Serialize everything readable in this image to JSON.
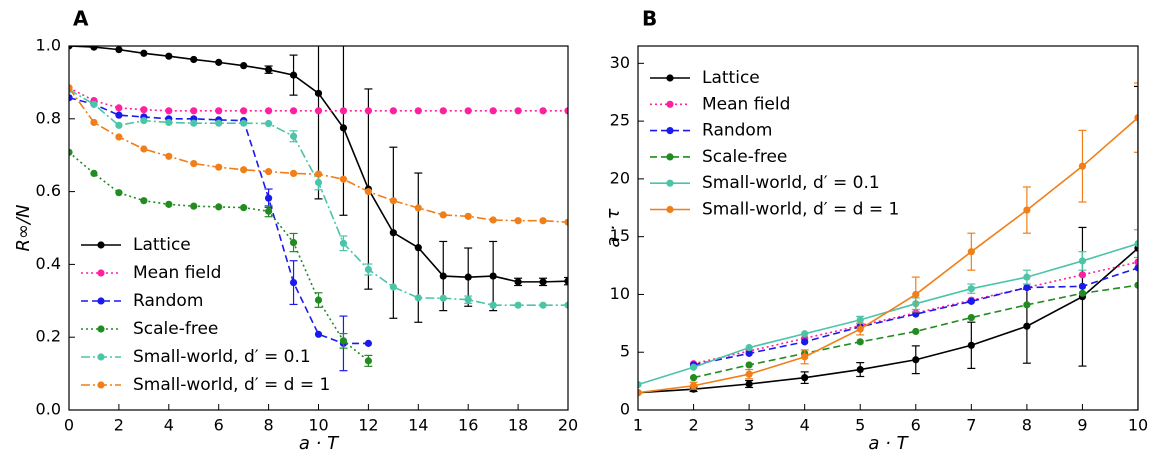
{
  "chart_data": [
    {
      "type": "line",
      "panel_label": "A",
      "x_label": "a · T",
      "y_label": "R∞/N",
      "x": [
        0,
        1,
        2,
        3,
        4,
        5,
        6,
        7,
        8,
        9,
        10,
        11,
        12,
        13,
        14,
        15,
        16,
        17,
        18,
        19,
        20
      ],
      "xlim": [
        0,
        20
      ],
      "xticks": [
        0,
        2,
        4,
        6,
        8,
        10,
        12,
        14,
        16,
        18,
        20
      ],
      "ylim": [
        0,
        1
      ],
      "yticks": [
        {
          "value": 0,
          "label": "0.0"
        },
        {
          "value": 0.2,
          "label": "0.2"
        },
        {
          "value": 0.4,
          "label": "0.4"
        },
        {
          "value": 0.6,
          "label": "0.6"
        },
        {
          "value": 0.8,
          "label": "0.8"
        },
        {
          "value": 1,
          "label": "1.0"
        }
      ],
      "legend": "lower left",
      "series": [
        {
          "name": "Lattice",
          "color": "#000000",
          "linestyle": "solid",
          "values": [
            1.0,
            0.997,
            0.99,
            0.98,
            0.972,
            0.963,
            0.955,
            0.946,
            0.935,
            0.92,
            0.87,
            0.775,
            0.607,
            0.487,
            0.446,
            0.368,
            0.365,
            0.368,
            0.352,
            0.352,
            0.354
          ],
          "errors": [
            null,
            null,
            null,
            null,
            null,
            null,
            null,
            null,
            0.01,
            0.055,
            0.29,
            0.24,
            0.275,
            0.235,
            0.205,
            0.095,
            0.08,
            0.095,
            0.01,
            0.01,
            0.01
          ]
        },
        {
          "name": "Mean field",
          "color": "#ff1fa0",
          "linestyle": "dotted",
          "values": [
            0.885,
            0.85,
            0.83,
            0.825,
            0.822,
            0.822,
            0.822,
            0.822,
            0.822,
            0.822,
            0.822,
            0.822,
            0.822,
            0.822,
            0.822,
            0.822,
            0.822,
            0.822,
            0.822,
            0.822,
            0.822
          ]
        },
        {
          "name": "Random",
          "color": "#1a1aee",
          "linestyle": "dashed",
          "values": [
            0.858,
            0.84,
            0.81,
            0.805,
            0.8,
            0.8,
            0.797,
            0.795,
            0.582,
            0.35,
            0.208,
            0.183,
            0.183,
            null,
            null,
            null,
            null,
            null,
            null,
            null,
            null
          ],
          "errors": [
            null,
            null,
            null,
            null,
            null,
            null,
            null,
            null,
            0.025,
            0.06,
            null,
            0.075,
            null,
            null,
            null,
            null,
            null,
            null,
            null,
            null,
            null
          ]
        },
        {
          "name": "Scale-free",
          "color": "#228b22",
          "linestyle": "dotted",
          "values": [
            0.708,
            0.65,
            0.597,
            0.575,
            0.565,
            0.56,
            0.558,
            0.556,
            0.546,
            0.46,
            0.302,
            0.19,
            0.135,
            null,
            null,
            null,
            null,
            null,
            null,
            null,
            null
          ],
          "errors": [
            null,
            null,
            null,
            null,
            null,
            null,
            null,
            null,
            0.015,
            0.025,
            0.02,
            0.02,
            0.015,
            null,
            null,
            null,
            null,
            null,
            null,
            null,
            null
          ]
        },
        {
          "name": "Small-world, d′ = 0.1",
          "color": "#4cc4a8",
          "linestyle": "dashdot",
          "values": [
            0.88,
            0.84,
            0.782,
            0.795,
            0.79,
            0.788,
            0.788,
            0.788,
            0.787,
            0.752,
            0.625,
            0.458,
            0.386,
            0.338,
            0.308,
            0.307,
            0.303,
            0.288,
            0.288,
            0.288,
            0.288
          ],
          "errors": [
            null,
            null,
            null,
            null,
            null,
            null,
            null,
            null,
            null,
            0.015,
            0.02,
            0.02,
            0.015,
            null,
            null,
            null,
            0.01,
            null,
            null,
            null,
            null
          ]
        },
        {
          "name": "Small-world, d′ = d = 1",
          "color": "#f07f1a",
          "linestyle": "dashdot",
          "values": [
            0.885,
            0.79,
            0.75,
            0.717,
            0.697,
            0.677,
            0.667,
            0.66,
            0.655,
            0.65,
            0.648,
            0.634,
            0.6,
            0.575,
            0.555,
            0.536,
            0.532,
            0.522,
            0.52,
            0.52,
            0.516
          ]
        }
      ]
    },
    {
      "type": "line",
      "panel_label": "B",
      "x_label": "a · T",
      "y_label": "a · τ",
      "x": [
        1,
        2,
        3,
        4,
        5,
        6,
        7,
        8,
        9,
        10
      ],
      "xlim": [
        1,
        10
      ],
      "xticks": [
        1,
        2,
        3,
        4,
        5,
        6,
        7,
        8,
        9,
        10
      ],
      "ylim": [
        0,
        31.5
      ],
      "yticks": [
        0,
        5,
        10,
        15,
        20,
        25,
        30
      ],
      "legend": "upper left",
      "series": [
        {
          "name": "Lattice",
          "color": "#000000",
          "linestyle": "solid",
          "values": [
            1.5,
            1.8,
            2.25,
            2.8,
            3.5,
            4.35,
            5.6,
            7.25,
            9.8,
            14.0
          ],
          "errors": [
            null,
            0.2,
            0.3,
            0.5,
            0.6,
            1.2,
            2.0,
            3.2,
            6.0,
            14.0
          ]
        },
        {
          "name": "Mean field",
          "color": "#ff1fa0",
          "linestyle": "dotted",
          "values": [
            null,
            4.0,
            5.1,
            6.2,
            7.3,
            8.4,
            9.5,
            10.6,
            11.7,
            12.8
          ]
        },
        {
          "name": "Random",
          "color": "#1a1aee",
          "linestyle": "dashed",
          "values": [
            null,
            3.9,
            4.9,
            5.9,
            7.2,
            8.3,
            9.4,
            10.6,
            10.7,
            12.3
          ]
        },
        {
          "name": "Scale-free",
          "color": "#228b22",
          "linestyle": "dashed",
          "values": [
            null,
            2.8,
            3.9,
            4.9,
            5.9,
            6.8,
            8.0,
            9.1,
            10.1,
            10.8
          ]
        },
        {
          "name": "Small-world, d′ = 0.1",
          "color": "#4cc4a8",
          "linestyle": "solid",
          "values": [
            2.2,
            3.7,
            5.4,
            6.6,
            7.8,
            9.2,
            10.5,
            11.5,
            12.9,
            14.4
          ],
          "errors": [
            null,
            null,
            null,
            null,
            0.3,
            0.5,
            0.4,
            0.6,
            0.8,
            1.2
          ]
        },
        {
          "name": "Small-world, d′ = d = 1",
          "color": "#f07f1a",
          "linestyle": "solid",
          "values": [
            1.5,
            2.1,
            3.1,
            4.6,
            7.0,
            10.0,
            13.7,
            17.3,
            21.1,
            25.3
          ],
          "errors": [
            null,
            0.3,
            0.4,
            0.6,
            0.5,
            1.5,
            1.6,
            2.0,
            3.1,
            3.0
          ]
        }
      ]
    }
  ]
}
